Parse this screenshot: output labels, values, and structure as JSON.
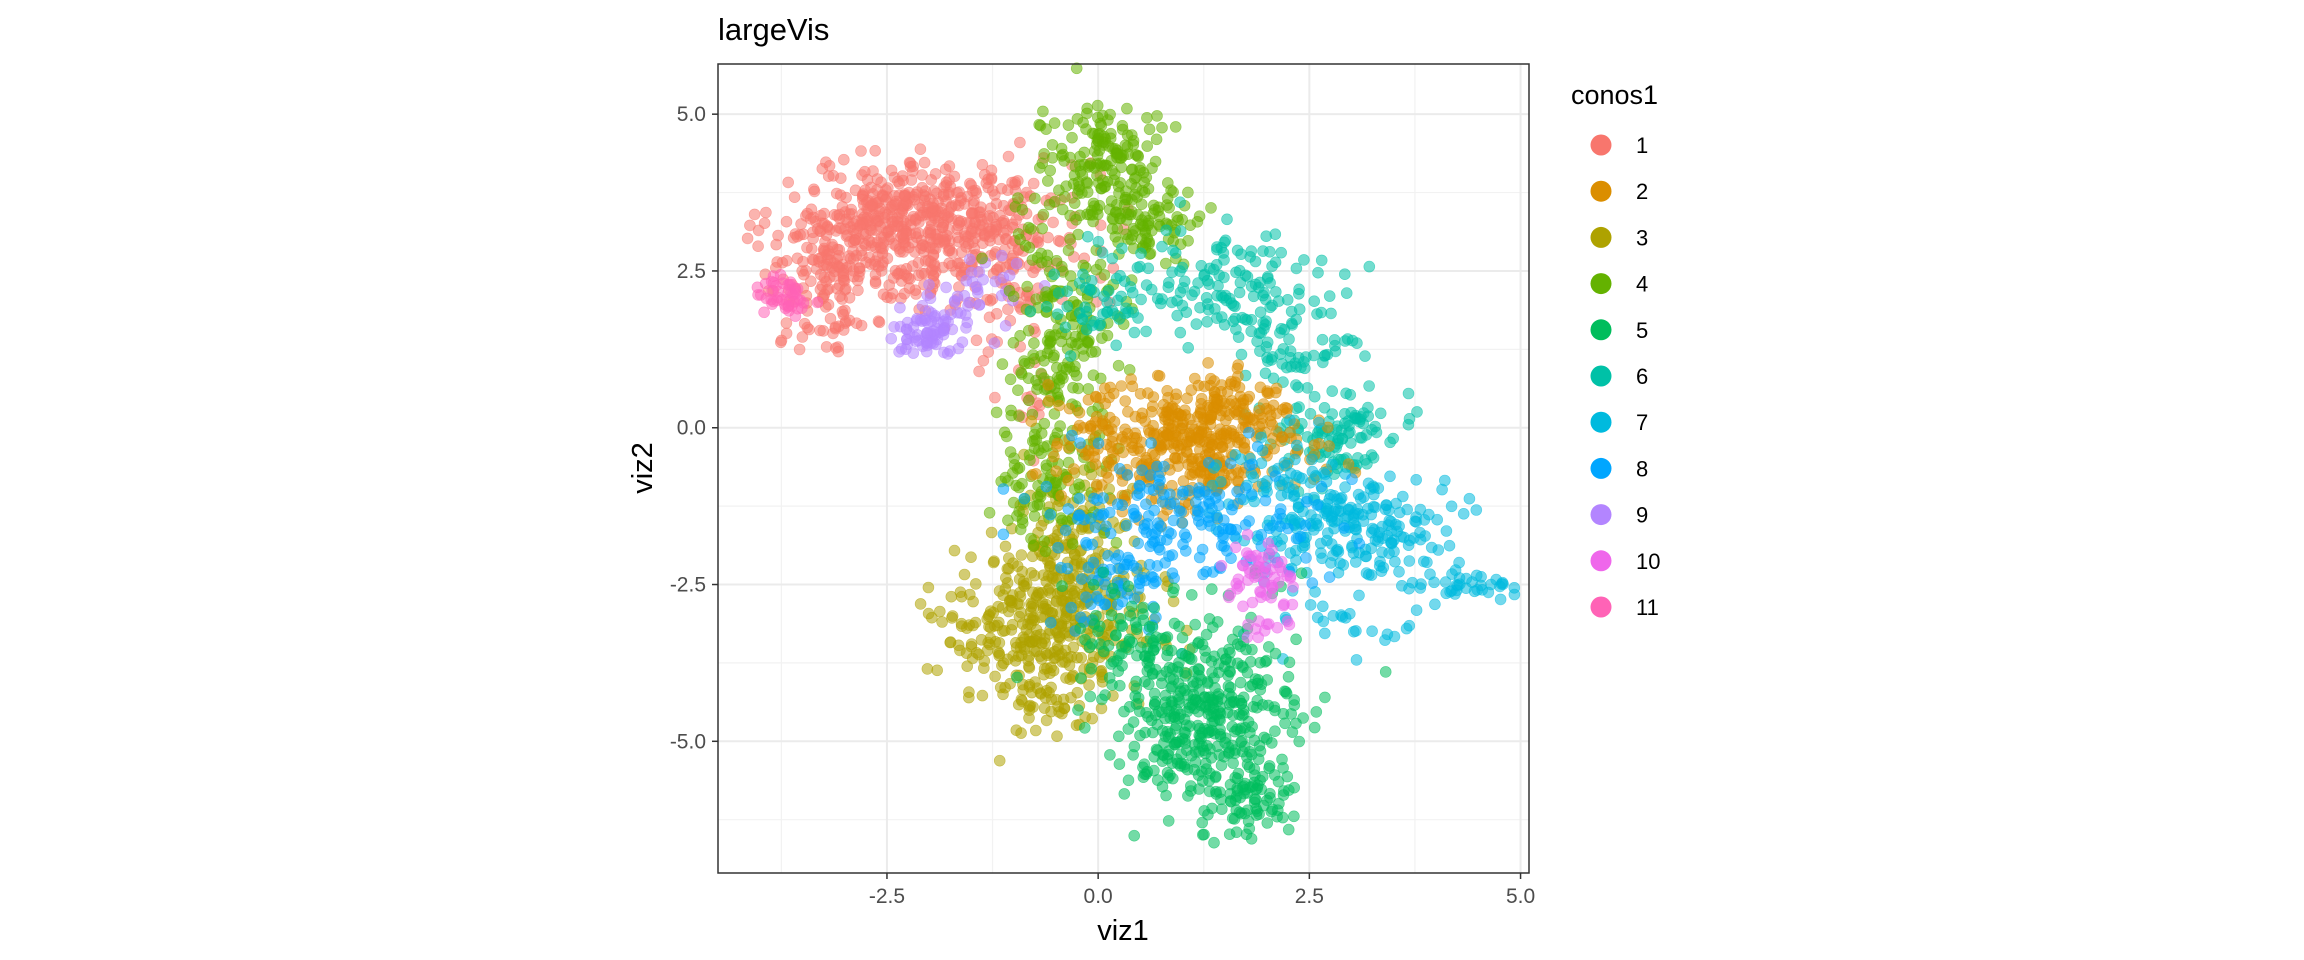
{
  "chart_data": {
    "type": "scatter",
    "title": "largeVis",
    "xlabel": "viz1",
    "ylabel": "viz2",
    "xlim": [
      -4.5,
      5.1
    ],
    "ylim": [
      -7.1,
      5.8
    ],
    "x_ticks": [
      -2.5,
      0.0,
      2.5,
      5.0
    ],
    "x_tick_labels": [
      "-2.5",
      "0.0",
      "2.5",
      "5.0"
    ],
    "y_ticks": [
      5.0,
      2.5,
      0.0,
      -2.5,
      -5.0
    ],
    "y_tick_labels": [
      "5.0",
      "2.5",
      "0.0",
      "-2.5",
      "-5.0"
    ],
    "grid": true,
    "point_alpha": 0.55,
    "legend": {
      "title": "conos1",
      "position": "right",
      "entries": [
        {
          "label": "1",
          "color": "#F8766D"
        },
        {
          "label": "2",
          "color": "#DB8E00"
        },
        {
          "label": "3",
          "color": "#AEA200"
        },
        {
          "label": "4",
          "color": "#64B200"
        },
        {
          "label": "5",
          "color": "#00BD5C"
        },
        {
          "label": "6",
          "color": "#00C1A7"
        },
        {
          "label": "7",
          "color": "#00BADE"
        },
        {
          "label": "8",
          "color": "#00A6FF"
        },
        {
          "label": "9",
          "color": "#B385FF"
        },
        {
          "label": "10",
          "color": "#EF67EB"
        },
        {
          "label": "11",
          "color": "#FF63B6"
        }
      ]
    },
    "series": [
      {
        "name": "1",
        "color": "#F8766D",
        "clusters": [
          {
            "cx": -2.2,
            "cy": 3.2,
            "sx": 0.75,
            "sy": 0.5,
            "n": 520
          },
          {
            "cx": -3.2,
            "cy": 2.5,
            "sx": 0.35,
            "sy": 0.45,
            "n": 110
          },
          {
            "cx": -1.1,
            "cy": 2.8,
            "sx": 0.45,
            "sy": 0.6,
            "n": 120
          },
          {
            "cx": -0.9,
            "cy": 0.8,
            "sx": 0.2,
            "sy": 0.5,
            "n": 25
          },
          {
            "cx": -3.3,
            "cy": 1.5,
            "sx": 0.3,
            "sy": 0.15,
            "n": 18
          }
        ]
      },
      {
        "name": "11",
        "color": "#FF63B6",
        "clusters": [
          {
            "cx": -3.7,
            "cy": 2.1,
            "sx": 0.18,
            "sy": 0.2,
            "n": 45
          }
        ]
      },
      {
        "name": "9",
        "color": "#B385FF",
        "clusters": [
          {
            "cx": -2.0,
            "cy": 1.55,
            "sx": 0.3,
            "sy": 0.22,
            "n": 75
          },
          {
            "cx": -1.5,
            "cy": 2.2,
            "sx": 0.35,
            "sy": 0.3,
            "n": 35
          }
        ]
      },
      {
        "name": "3",
        "color": "#AEA200",
        "clusters": [
          {
            "cx": -0.55,
            "cy": -3.1,
            "sx": 0.55,
            "sy": 0.65,
            "n": 420
          },
          {
            "cx": -0.4,
            "cy": -1.6,
            "sx": 0.35,
            "sy": 0.5,
            "n": 90
          },
          {
            "cx": -0.6,
            "cy": -4.5,
            "sx": 0.3,
            "sy": 0.2,
            "n": 25
          }
        ]
      },
      {
        "name": "4",
        "color": "#64B200",
        "clusters": [
          {
            "cx": 0.1,
            "cy": 4.3,
            "sx": 0.35,
            "sy": 0.45,
            "n": 150
          },
          {
            "cx": 0.5,
            "cy": 3.3,
            "sx": 0.35,
            "sy": 0.3,
            "n": 90
          },
          {
            "cx": -0.4,
            "cy": 1.6,
            "sx": 0.35,
            "sy": 1.2,
            "n": 230
          },
          {
            "cx": -0.6,
            "cy": -0.9,
            "sx": 0.3,
            "sy": 0.45,
            "n": 80
          }
        ]
      },
      {
        "name": "6",
        "color": "#00C1A7",
        "clusters": [
          {
            "cx": 1.4,
            "cy": 2.2,
            "sx": 0.6,
            "sy": 0.5,
            "n": 140
          },
          {
            "cx": 2.4,
            "cy": 1.2,
            "sx": 0.35,
            "sy": 0.35,
            "n": 55
          },
          {
            "cx": 2.8,
            "cy": -0.2,
            "sx": 0.35,
            "sy": 0.35,
            "n": 110
          },
          {
            "cx": 0.1,
            "cy": 2.0,
            "sx": 0.35,
            "sy": 0.4,
            "n": 50
          }
        ]
      },
      {
        "name": "2",
        "color": "#DB8E00",
        "clusters": [
          {
            "cx": 1.0,
            "cy": -0.3,
            "sx": 0.7,
            "sy": 0.5,
            "n": 430
          },
          {
            "cx": 1.7,
            "cy": 0.4,
            "sx": 0.3,
            "sy": 0.3,
            "n": 60
          }
        ]
      },
      {
        "name": "7",
        "color": "#00BADE",
        "clusters": [
          {
            "cx": 3.0,
            "cy": -1.6,
            "sx": 0.55,
            "sy": 0.35,
            "n": 200
          },
          {
            "cx": 4.3,
            "cy": -2.5,
            "sx": 0.35,
            "sy": 0.12,
            "n": 40
          },
          {
            "cx": 2.8,
            "cy": -3.2,
            "sx": 0.6,
            "sy": 0.35,
            "n": 30
          },
          {
            "cx": 2.2,
            "cy": -0.8,
            "sx": 0.4,
            "sy": 0.4,
            "n": 60
          }
        ]
      },
      {
        "name": "8",
        "color": "#00A6FF",
        "clusters": [
          {
            "cx": 1.0,
            "cy": -1.5,
            "sx": 0.8,
            "sy": 0.5,
            "n": 190
          },
          {
            "cx": 0.2,
            "cy": -2.5,
            "sx": 0.4,
            "sy": 0.4,
            "n": 50
          }
        ]
      },
      {
        "name": "5",
        "color": "#00BD5C",
        "clusters": [
          {
            "cx": 1.3,
            "cy": -4.5,
            "sx": 0.55,
            "sy": 0.75,
            "n": 380
          },
          {
            "cx": 1.8,
            "cy": -5.9,
            "sx": 0.3,
            "sy": 0.3,
            "n": 70
          },
          {
            "cx": 0.4,
            "cy": -3.3,
            "sx": 0.4,
            "sy": 0.4,
            "n": 70
          },
          {
            "cx": 0.8,
            "cy": -5.3,
            "sx": 0.3,
            "sy": 0.2,
            "n": 25
          }
        ]
      },
      {
        "name": "10",
        "color": "#EF67EB",
        "clusters": [
          {
            "cx": 1.9,
            "cy": -2.4,
            "sx": 0.22,
            "sy": 0.3,
            "n": 55
          },
          {
            "cx": 2.0,
            "cy": -3.2,
            "sx": 0.15,
            "sy": 0.2,
            "n": 12
          }
        ]
      }
    ]
  }
}
